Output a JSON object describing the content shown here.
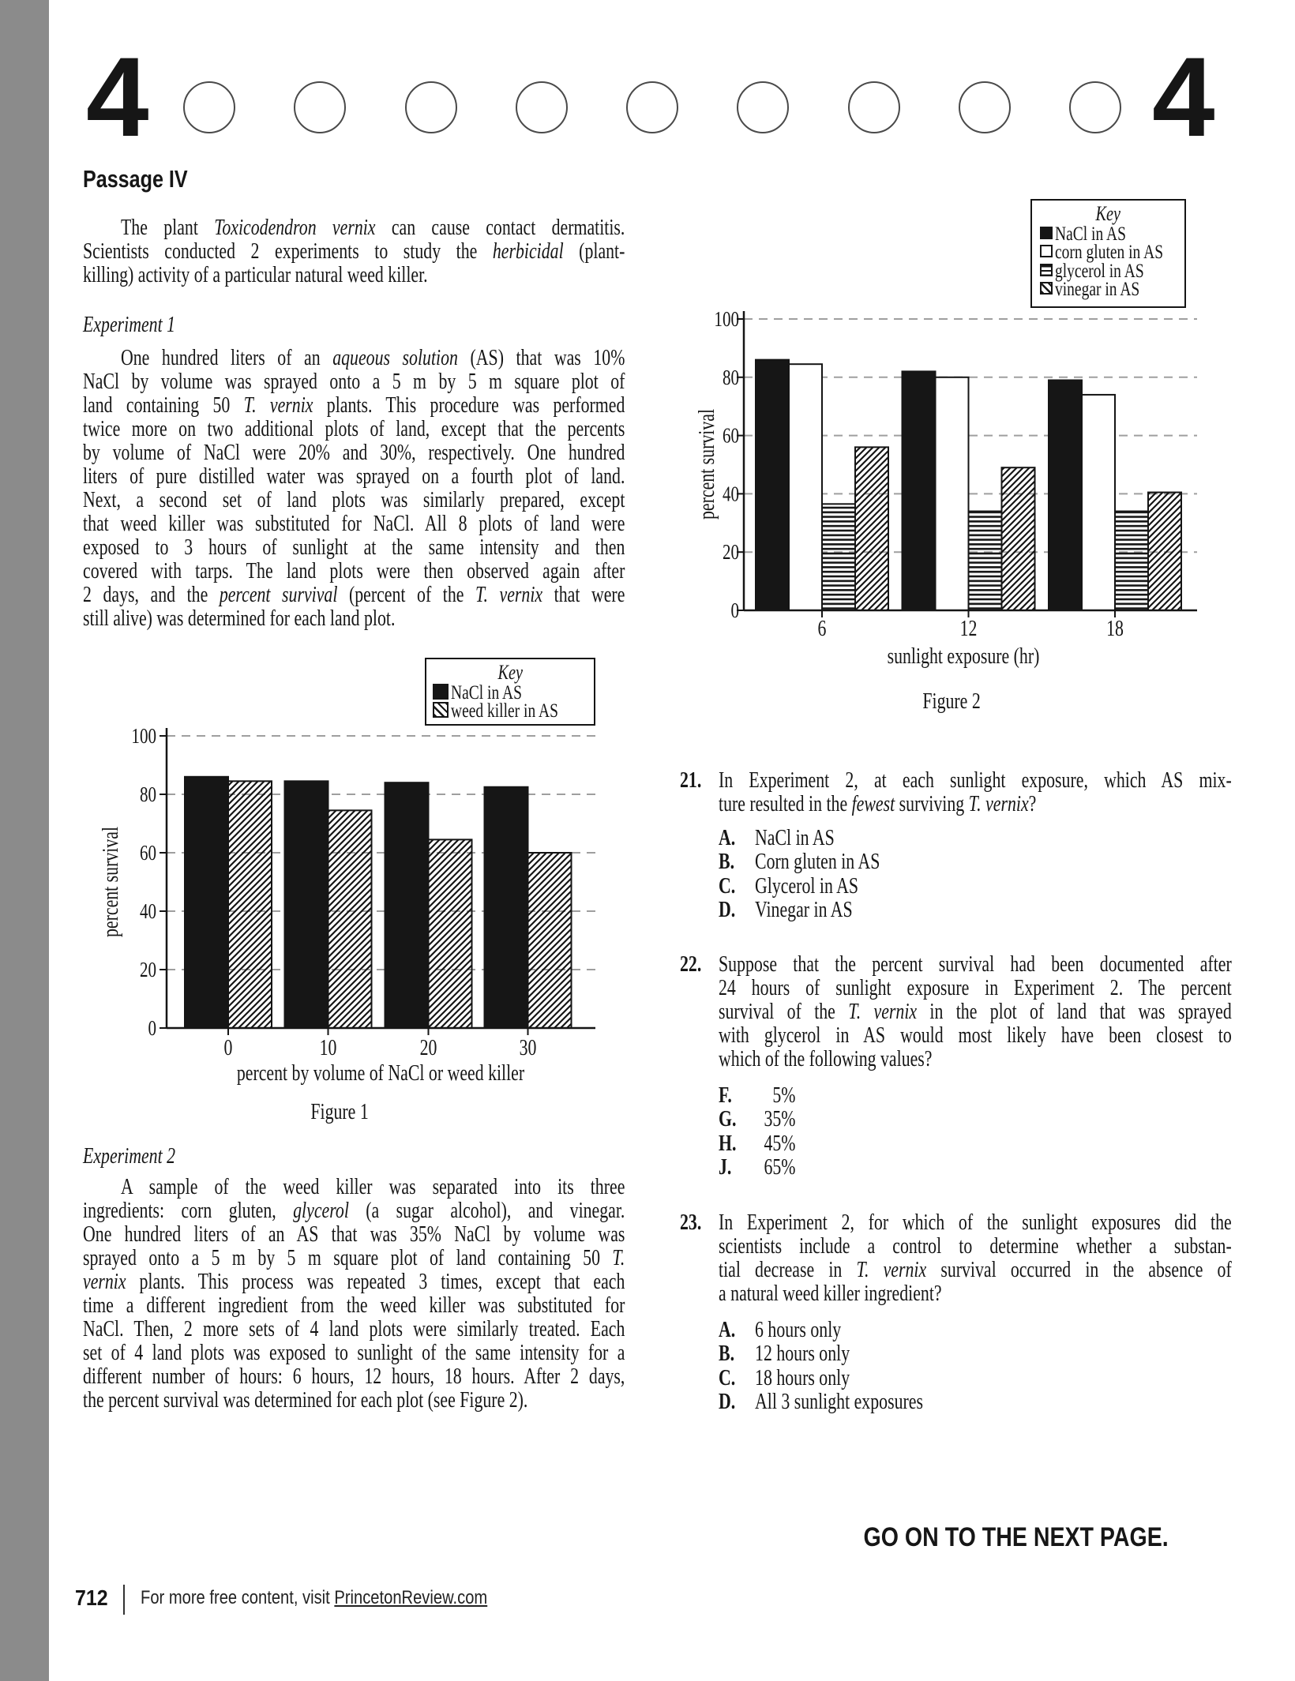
{
  "page": {
    "section_number": "4",
    "bubble_count": 9,
    "page_number": "712",
    "footer_text": "For more free content, visit ",
    "footer_link": "PrincetonReview.com",
    "go_on": "GO ON TO THE NEXT PAGE.",
    "gray_strip_color": "#8b8b8b"
  },
  "passage": {
    "title": "Passage IV",
    "intro_lines": [
      [
        {
          "t": "The plant "
        },
        {
          "t": "Toxicodendron vernix",
          "i": 1
        },
        {
          "t": " can cause contact dermatitis."
        }
      ],
      [
        {
          "t": "Scientists conducted 2 experiments to study the "
        },
        {
          "t": "herbicidal",
          "i": 1
        },
        {
          "t": " (plant-"
        }
      ],
      [
        {
          "t": "killing) activity of a particular natural weed killer."
        }
      ]
    ],
    "exp1_heading": "Experiment 1",
    "exp1_lines": [
      [
        {
          "t": "One hundred liters of an "
        },
        {
          "t": "aqueous solution",
          "i": 1
        },
        {
          "t": " (AS) that was 10%"
        }
      ],
      [
        {
          "t": "NaCl by volume was sprayed onto a 5 m by 5 m square plot of"
        }
      ],
      [
        {
          "t": "land containing 50 "
        },
        {
          "t": "T. vernix",
          "i": 1
        },
        {
          "t": " plants. This procedure was performed"
        }
      ],
      [
        {
          "t": "twice more on two additional plots of land, except that the percents"
        }
      ],
      [
        {
          "t": "by volume of NaCl were 20% and 30%, respectively. One hundred"
        }
      ],
      [
        {
          "t": "liters of pure distilled water was sprayed on a fourth plot of land."
        }
      ],
      [
        {
          "t": "Next, a second set of land plots was similarly prepared, except"
        }
      ],
      [
        {
          "t": "that weed killer was substituted for NaCl. All 8 plots of land were"
        }
      ],
      [
        {
          "t": "exposed to 3 hours of sunlight at the same intensity and then"
        }
      ],
      [
        {
          "t": "covered with tarps. The land plots were then observed again after"
        }
      ],
      [
        {
          "t": "2 days, and the "
        },
        {
          "t": "percent survival",
          "i": 1
        },
        {
          "t": " (percent of the "
        },
        {
          "t": "T. vernix",
          "i": 1
        },
        {
          "t": " that were"
        }
      ],
      [
        {
          "t": "still alive) was determined for each land plot."
        }
      ]
    ],
    "exp2_heading": "Experiment 2",
    "exp2_lines": [
      [
        {
          "t": "A sample of the weed killer was separated into its three"
        }
      ],
      [
        {
          "t": "ingredients: corn gluten, "
        },
        {
          "t": "glycerol",
          "i": 1
        },
        {
          "t": " (a sugar alcohol), and vinegar."
        }
      ],
      [
        {
          "t": "One hundred liters of an AS that was 35% NaCl by volume was"
        }
      ],
      [
        {
          "t": "sprayed onto a 5 m by 5 m square plot of land containing 50 "
        },
        {
          "t": "T.",
          "i": 1
        }
      ],
      [
        {
          "t": "vernix",
          "i": 1
        },
        {
          "t": " plants. This process was repeated 3 times, except that each"
        }
      ],
      [
        {
          "t": "time a different ingredient from the weed killer was substituted for"
        }
      ],
      [
        {
          "t": "NaCl. Then, 2 more sets of 4 land plots were similarly treated. Each"
        }
      ],
      [
        {
          "t": "set of 4 land plots was exposed to sunlight of the same intensity for a"
        }
      ],
      [
        {
          "t": "different number of hours: 6 hours, 12 hours, 18 hours. After 2 days,"
        }
      ],
      [
        {
          "t": "the percent survival was determined for each plot (see Figure 2)."
        }
      ]
    ]
  },
  "chart_data": [
    {
      "type": "bar",
      "title": "Figure 1",
      "key_title": "Key",
      "categories": [
        "0",
        "10",
        "20",
        "30"
      ],
      "series": [
        {
          "name": "NaCl in AS",
          "pattern": "solid",
          "values": [
            86,
            84.5,
            84,
            82.5
          ]
        },
        {
          "name": "weed killer in AS",
          "pattern": "diag",
          "values": [
            84.5,
            74.5,
            64.5,
            60
          ]
        }
      ],
      "xlabel": "percent by volume of NaCl or weed killer",
      "ylabel": "percent survival",
      "yticks": [
        0,
        20,
        40,
        60,
        80,
        100
      ],
      "ylim": [
        0,
        100
      ],
      "grid": "dashed"
    },
    {
      "type": "bar",
      "title": "Figure 2",
      "key_title": "Key",
      "categories": [
        "6",
        "12",
        "18"
      ],
      "series": [
        {
          "name": "NaCl in AS",
          "pattern": "solid",
          "values": [
            86,
            82,
            79
          ]
        },
        {
          "name": "corn gluten in AS",
          "pattern": "white",
          "values": [
            84.5,
            80,
            74
          ]
        },
        {
          "name": "glycerol in AS",
          "pattern": "horiz",
          "values": [
            36.5,
            34,
            34
          ]
        },
        {
          "name": "vinegar in AS",
          "pattern": "diag",
          "values": [
            56,
            49,
            40.5
          ]
        }
      ],
      "xlabel": "sunlight exposure (hr)",
      "ylabel": "percent survival",
      "yticks": [
        0,
        20,
        40,
        60,
        80,
        100
      ],
      "ylim": [
        0,
        100
      ],
      "grid": "dashed"
    }
  ],
  "questions": [
    {
      "number": "21.",
      "stem_lines": [
        [
          {
            "t": "In Experiment 2, at each sunlight exposure, which AS mix-"
          }
        ],
        [
          {
            "t": "ture resulted in the "
          },
          {
            "t": "fewest",
            "i": 1
          },
          {
            "t": " surviving "
          },
          {
            "t": "T. vernix",
            "i": 1
          },
          {
            "t": "?"
          }
        ]
      ],
      "options": [
        {
          "letter": "A.",
          "text": "NaCl in AS"
        },
        {
          "letter": "B.",
          "text": "Corn gluten in AS"
        },
        {
          "letter": "C.",
          "text": "Glycerol in AS"
        },
        {
          "letter": "D.",
          "text": "Vinegar in AS"
        }
      ],
      "numeric": false
    },
    {
      "number": "22.",
      "stem_lines": [
        [
          {
            "t": "Suppose that the percent survival had been documented after"
          }
        ],
        [
          {
            "t": "24 hours of sunlight exposure in Experiment 2. The percent"
          }
        ],
        [
          {
            "t": "survival of the "
          },
          {
            "t": "T. vernix",
            "i": 1
          },
          {
            "t": " in the plot of land that was sprayed"
          }
        ],
        [
          {
            "t": "with glycerol in AS would most likely have been closest to"
          }
        ],
        [
          {
            "t": "which of the following values?"
          }
        ]
      ],
      "options": [
        {
          "letter": "F.",
          "text": "5%"
        },
        {
          "letter": "G.",
          "text": "35%"
        },
        {
          "letter": "H.",
          "text": "45%"
        },
        {
          "letter": "J.",
          "text": "65%"
        }
      ],
      "numeric": true
    },
    {
      "number": "23.",
      "stem_lines": [
        [
          {
            "t": "In Experiment 2, for which of the sunlight exposures did the"
          }
        ],
        [
          {
            "t": "scientists include a control to determine whether a substan-"
          }
        ],
        [
          {
            "t": "tial decrease in "
          },
          {
            "t": "T. vernix",
            "i": 1
          },
          {
            "t": " survival occurred in the absence of"
          }
        ],
        [
          {
            "t": "a natural weed killer ingredient?"
          }
        ]
      ],
      "options": [
        {
          "letter": "A.",
          "text": "6 hours only"
        },
        {
          "letter": "B.",
          "text": "12 hours only"
        },
        {
          "letter": "C.",
          "text": "18 hours only"
        },
        {
          "letter": "D.",
          "text": "All 3 sunlight exposures"
        }
      ],
      "numeric": false
    }
  ]
}
